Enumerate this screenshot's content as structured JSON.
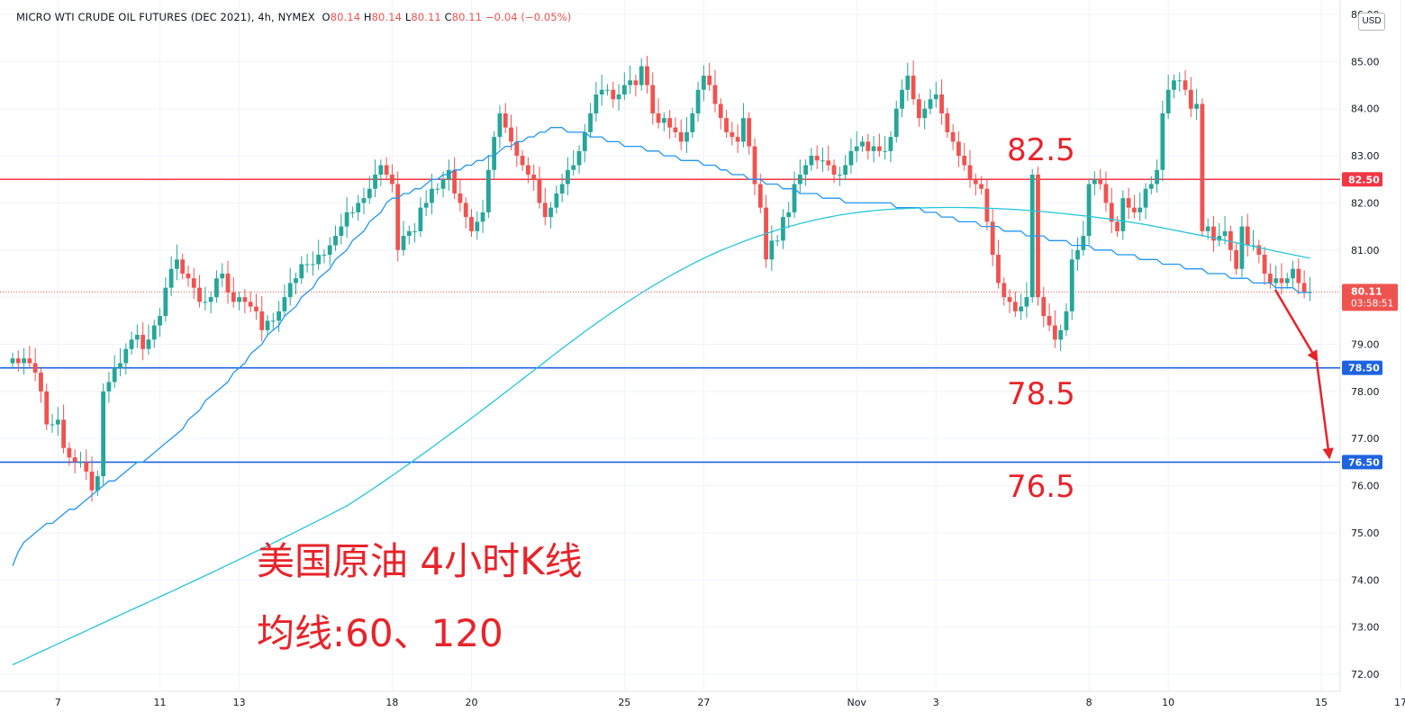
{
  "legend": {
    "symbol": "MICRO WTI CRUDE OIL FUTURES (DEC 2021), 4h, NYMEX",
    "o_label": "O",
    "o_value": "80.14",
    "h_label": "H",
    "h_value": "80.14",
    "l_label": "L",
    "l_value": "80.11",
    "c_label": "C",
    "c_value": "80.11",
    "change": "−0.04 (−0.05%)"
  },
  "currency": "USD",
  "annotations": {
    "title": "美国原油 4小时K线",
    "subtitle": "均线:60、120",
    "level_top": "82.5",
    "level_mid": "78.5",
    "level_low": "76.5"
  },
  "price_axis": {
    "badge_current": "80.11",
    "badge_countdown": "03:58:51"
  },
  "colors": {
    "up": "#26a69a",
    "down": "#ef5350",
    "ma60": "#2196f3",
    "ma120": "#26c6da",
    "resistance": "#f23645",
    "support": "#1e63e0",
    "annotation": "#e8232a"
  },
  "chart_data": {
    "type": "candlestick",
    "title": "MICRO WTI CRUDE OIL FUTURES (DEC 2021), 4h, NYMEX",
    "y_range": [
      71.6,
      86.0
    ],
    "y_ticks": [
      72.0,
      73.0,
      74.0,
      75.0,
      76.0,
      77.0,
      78.0,
      79.0,
      80.0,
      81.0,
      82.0,
      83.0,
      84.0,
      85.0,
      86.0
    ],
    "x_ticks": [
      {
        "bar": 8,
        "label": "7"
      },
      {
        "bar": 26,
        "label": "11"
      },
      {
        "bar": 40,
        "label": "13"
      },
      {
        "bar": 67,
        "label": "18"
      },
      {
        "bar": 81,
        "label": "20"
      },
      {
        "bar": 108,
        "label": "25"
      },
      {
        "bar": 122,
        "label": "27"
      },
      {
        "bar": 149,
        "label": "Nov"
      },
      {
        "bar": 163,
        "label": "3"
      },
      {
        "bar": 190,
        "label": "8"
      },
      {
        "bar": 204,
        "label": "10"
      },
      {
        "bar": 231,
        "label": "15"
      },
      {
        "bar": 245,
        "label": "17"
      }
    ],
    "horizontal_levels": [
      {
        "value": 82.5,
        "label": "82.50",
        "color": "resistance"
      },
      {
        "value": 78.5,
        "label": "78.50",
        "color": "support"
      },
      {
        "value": 76.5,
        "label": "76.50",
        "color": "support"
      }
    ],
    "current_price": 80.11,
    "closes": [
      78.7,
      78.6,
      78.7,
      78.6,
      78.4,
      78.0,
      77.3,
      77.3,
      77.4,
      76.8,
      76.6,
      76.5,
      76.5,
      76.3,
      75.9,
      76.2,
      78.0,
      78.2,
      78.5,
      78.6,
      78.9,
      79.1,
      79.2,
      78.9,
      79.1,
      79.4,
      79.6,
      80.2,
      80.6,
      80.8,
      80.5,
      80.4,
      80.2,
      79.9,
      79.9,
      80.0,
      80.4,
      80.5,
      80.1,
      79.9,
      80.0,
      79.9,
      79.8,
      79.7,
      79.3,
      79.5,
      79.5,
      79.7,
      80.0,
      80.3,
      80.4,
      80.7,
      80.7,
      80.7,
      80.9,
      80.9,
      81.1,
      81.3,
      81.5,
      81.8,
      81.8,
      82.0,
      82.1,
      82.3,
      82.6,
      82.8,
      82.6,
      82.4,
      81.0,
      81.3,
      81.4,
      81.4,
      81.9,
      82.0,
      82.3,
      82.3,
      82.5,
      82.7,
      82.2,
      82.0,
      81.7,
      81.4,
      81.6,
      81.8,
      82.7,
      83.4,
      83.9,
      83.6,
      83.3,
      83.0,
      82.8,
      82.6,
      82.5,
      82.0,
      81.7,
      81.9,
      82.2,
      82.4,
      82.7,
      82.8,
      83.1,
      83.5,
      83.9,
      84.3,
      84.4,
      84.4,
      84.2,
      84.3,
      84.5,
      84.6,
      84.5,
      84.9,
      84.5,
      83.9,
      83.7,
      83.8,
      83.6,
      83.5,
      83.3,
      83.5,
      83.9,
      84.4,
      84.7,
      84.5,
      84.1,
      83.8,
      83.5,
      83.4,
      83.3,
      83.8,
      83.2,
      82.4,
      81.9,
      80.8,
      81.2,
      81.2,
      81.7,
      81.8,
      82.4,
      82.6,
      82.8,
      83.0,
      82.9,
      82.9,
      82.8,
      82.6,
      82.6,
      82.8,
      83.1,
      83.2,
      83.3,
      83.1,
      83.2,
      83.1,
      83.1,
      83.4,
      84.0,
      84.4,
      84.7,
      84.2,
      83.8,
      84.0,
      84.2,
      84.3,
      83.9,
      83.5,
      83.3,
      83.0,
      82.8,
      82.5,
      82.4,
      82.3,
      81.6,
      80.9,
      80.3,
      80.0,
      79.9,
      79.7,
      79.8,
      80.0,
      82.6,
      80.0,
      79.6,
      79.4,
      79.1,
      79.3,
      79.7,
      80.8,
      81.0,
      81.3,
      82.4,
      82.5,
      82.4,
      82.0,
      81.6,
      81.4,
      82.1,
      81.9,
      81.8,
      81.9,
      82.3,
      82.4,
      82.7,
      83.9,
      84.4,
      84.6,
      84.6,
      84.4,
      84.0,
      84.1,
      81.4,
      81.5,
      81.2,
      81.3,
      81.4,
      81.0,
      80.6,
      81.5,
      81.1,
      81.1,
      80.9,
      80.5,
      80.3,
      80.4,
      80.3,
      80.4,
      80.6,
      80.3,
      80.1,
      80.11
    ],
    "series": [
      {
        "name": "MA 60",
        "type": "line",
        "values": [
          74.3,
          74.6,
          74.8,
          74.9,
          75.0,
          75.1,
          75.2,
          75.2,
          75.3,
          75.4,
          75.5,
          75.5,
          75.6,
          75.7,
          75.8,
          75.9,
          76.0,
          76.1,
          76.1,
          76.2,
          76.3,
          76.4,
          76.5,
          76.5,
          76.6,
          76.7,
          76.8,
          76.9,
          77.0,
          77.1,
          77.2,
          77.4,
          77.5,
          77.6,
          77.8,
          77.9,
          78.0,
          78.1,
          78.2,
          78.4,
          78.5,
          78.6,
          78.8,
          78.9,
          79.0,
          79.2,
          79.3,
          79.4,
          79.6,
          79.7,
          79.8,
          80.0,
          80.1,
          80.2,
          80.4,
          80.5,
          80.6,
          80.8,
          80.9,
          81.0,
          81.2,
          81.3,
          81.4,
          81.6,
          81.7,
          81.8,
          82.0,
          82.1,
          82.1,
          82.2,
          82.2,
          82.3,
          82.3,
          82.4,
          82.5,
          82.5,
          82.6,
          82.6,
          82.7,
          82.7,
          82.8,
          82.8,
          82.9,
          82.9,
          83.0,
          83.0,
          83.1,
          83.2,
          83.2,
          83.3,
          83.3,
          83.4,
          83.4,
          83.5,
          83.5,
          83.6,
          83.6,
          83.6,
          83.5,
          83.5,
          83.5,
          83.5,
          83.4,
          83.4,
          83.4,
          83.3,
          83.3,
          83.3,
          83.2,
          83.2,
          83.2,
          83.2,
          83.1,
          83.1,
          83.1,
          83.0,
          83.0,
          83.0,
          82.9,
          82.9,
          82.9,
          82.9,
          82.8,
          82.8,
          82.8,
          82.7,
          82.7,
          82.6,
          82.6,
          82.6,
          82.5,
          82.5,
          82.5,
          82.4,
          82.4,
          82.4,
          82.3,
          82.3,
          82.3,
          82.2,
          82.2,
          82.2,
          82.2,
          82.1,
          82.1,
          82.1,
          82.1,
          82.0,
          82.0,
          82.0,
          82.0,
          82.0,
          82.0,
          82.0,
          82.0,
          82.0,
          81.9,
          81.9,
          81.9,
          81.9,
          81.9,
          81.8,
          81.8,
          81.8,
          81.7,
          81.7,
          81.7,
          81.6,
          81.6,
          81.6,
          81.6,
          81.5,
          81.5,
          81.5,
          81.5,
          81.4,
          81.4,
          81.4,
          81.4,
          81.3,
          81.3,
          81.3,
          81.3,
          81.2,
          81.2,
          81.2,
          81.2,
          81.1,
          81.1,
          81.1,
          81.1,
          81.0,
          81.0,
          81.0,
          81.0,
          80.9,
          80.9,
          80.9,
          80.9,
          80.8,
          80.8,
          80.8,
          80.8,
          80.7,
          80.7,
          80.7,
          80.7,
          80.6,
          80.6,
          80.6,
          80.6,
          80.5,
          80.5,
          80.5,
          80.5,
          80.4,
          80.4,
          80.4,
          80.4,
          80.3,
          80.3,
          80.3,
          80.3,
          80.2,
          80.2,
          80.2,
          80.2,
          80.1,
          80.1,
          80.1,
          80.1,
          80.0
        ]
      }
    ]
  }
}
